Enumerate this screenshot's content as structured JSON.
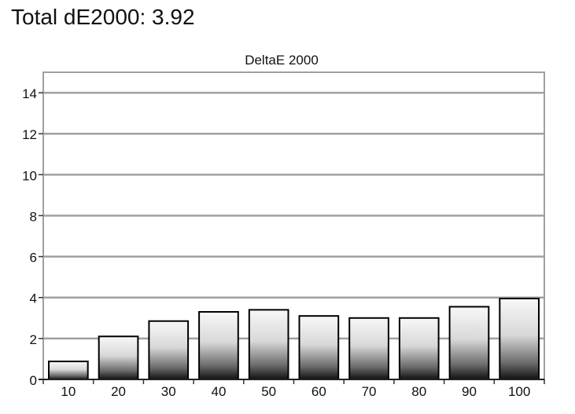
{
  "headline": "Total dE2000: 3.92",
  "chart_data": {
    "type": "bar",
    "title": "DeltaE 2000",
    "xlabel": "",
    "ylabel": "",
    "categories": [
      "10",
      "20",
      "30",
      "40",
      "50",
      "60",
      "70",
      "80",
      "90",
      "100"
    ],
    "values": [
      0.88,
      2.1,
      2.85,
      3.3,
      3.4,
      3.1,
      3.0,
      3.0,
      3.55,
      3.95
    ],
    "ylim": [
      0,
      15
    ],
    "yticks": [
      0,
      2,
      4,
      6,
      8,
      10,
      12,
      14
    ],
    "grid": true,
    "bar_fill": "white-to-black vertical gradient",
    "colors": {
      "grid": "#a0a0a0",
      "frame": "#a0a0a0",
      "bar_outline": "#000000",
      "text": "#111111"
    }
  }
}
